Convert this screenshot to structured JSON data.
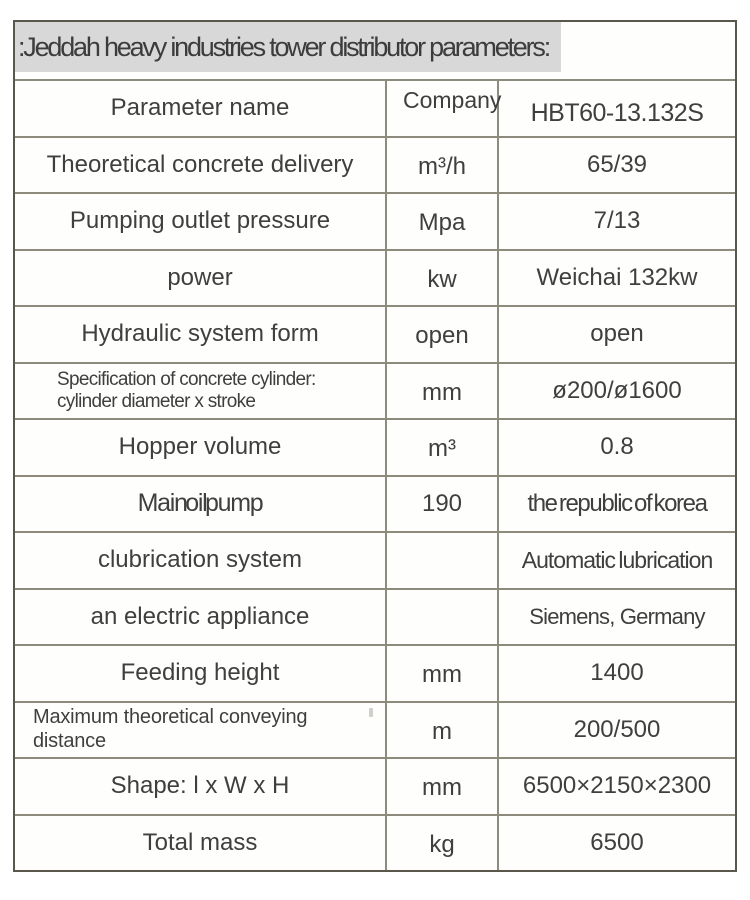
{
  "title": ":Jeddah heavy industries tower distributor parameters:",
  "header": {
    "parameter": "Parameter name",
    "company": "Company",
    "model": "HBT60-13.132S"
  },
  "rows": [
    {
      "name": "Theoretical concrete delivery",
      "unit": "m³/h",
      "value": "65/39"
    },
    {
      "name": "Pumping outlet pressure",
      "unit": "Mpa",
      "value": "7/13"
    },
    {
      "name": "power",
      "unit": "kw",
      "value": "Weichai 132kw"
    },
    {
      "name": "Hydraulic system form",
      "unit": "open",
      "value": "open"
    },
    {
      "name": "Specification of concrete cylinder:\ncylinder diameter x stroke",
      "unit": "mm",
      "value": "ø200/ø1600"
    },
    {
      "name": "Hopper volume",
      "unit": "m³",
      "value": "0.8"
    },
    {
      "name": "Main oil pump",
      "unit": "190",
      "value": "the republic of korea"
    },
    {
      "name": "clubrication system",
      "unit": "",
      "value": "Automatic lubrication"
    },
    {
      "name": "an electric appliance",
      "unit": "",
      "value": "Siemens, Germany"
    },
    {
      "name": "Feeding height",
      "unit": "mm",
      "value": "1400"
    },
    {
      "name": "Maximum theoretical conveying\ndistance",
      "unit": "m",
      "value": "200/500"
    },
    {
      "name": "Shape: l x W x H",
      "unit": "mm",
      "value": "6500×2150×2300"
    },
    {
      "name": "Total mass",
      "unit": "kg",
      "value": "6500"
    }
  ],
  "colors": {
    "border": "#8c8b7c",
    "border_outer": "#5a584c",
    "text": "#3f3f3f",
    "title_highlight": "#d8d8d8"
  }
}
